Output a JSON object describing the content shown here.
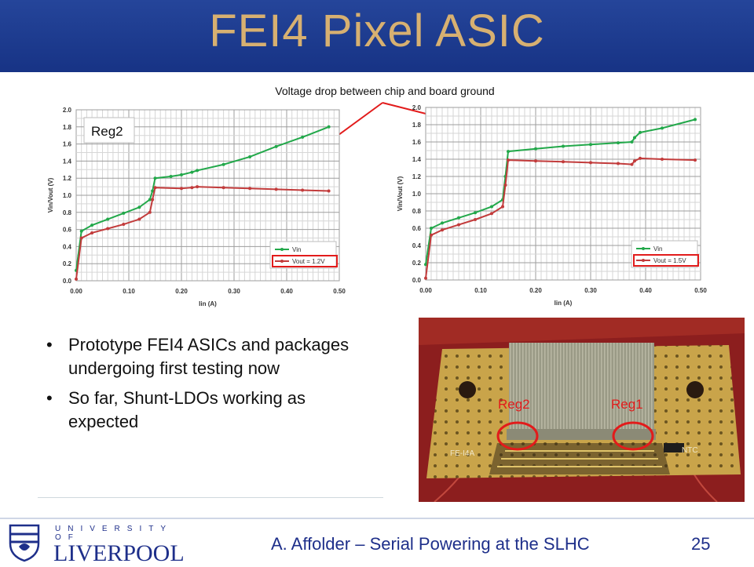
{
  "slide": {
    "title": "FEI4 Pixel ASIC",
    "annotation": "Voltage drop between chip and board ground",
    "bullets": [
      "Prototype FEI4 ASICs and packages undergoing first testing now",
      "So far, Shunt-LDOs working as expected"
    ],
    "footer": "A. Affolder – Serial Powering at the SLHC",
    "page_number": "25",
    "logo": {
      "line1": "UNIVERSITY OF",
      "line2": "LIVERPOOL"
    },
    "photo_labels": {
      "left": "Reg2",
      "right": "Reg1"
    },
    "photo_chip_label": "FE-I4A",
    "photo_ntc_label": "NTC"
  },
  "colors": {
    "title": "#d7b071",
    "titlebar": "#1f3c8f",
    "vin": "#22a84a",
    "vout": "#c23b3b",
    "highlight": "#e21b1b"
  },
  "chart_data": [
    {
      "type": "line",
      "label_box": "Reg2",
      "xlabel": "Iin (A)",
      "ylabel": "Vin/Vout (V)",
      "xlim": [
        0,
        0.5
      ],
      "ylim": [
        0,
        2.0
      ],
      "xticks": [
        "0.00",
        "0.10",
        "0.20",
        "0.30",
        "0.40",
        "0.50"
      ],
      "yticks": [
        "0.0",
        "0.2",
        "0.4",
        "0.6",
        "0.8",
        "1.0",
        "1.2",
        "1.4",
        "1.6",
        "1.8",
        "2.0"
      ],
      "grid": true,
      "legend_position": "bottom-right",
      "series": [
        {
          "name": "Vin",
          "x": [
            0.0,
            0.01,
            0.03,
            0.06,
            0.09,
            0.12,
            0.14,
            0.145,
            0.15,
            0.18,
            0.2,
            0.22,
            0.23,
            0.28,
            0.33,
            0.38,
            0.43,
            0.48
          ],
          "y": [
            0.12,
            0.58,
            0.65,
            0.72,
            0.79,
            0.86,
            0.95,
            1.05,
            1.2,
            1.22,
            1.24,
            1.27,
            1.29,
            1.36,
            1.45,
            1.57,
            1.68,
            1.8
          ]
        },
        {
          "name": "Vout = 1.2V",
          "x": [
            0.0,
            0.01,
            0.03,
            0.06,
            0.09,
            0.12,
            0.14,
            0.145,
            0.15,
            0.2,
            0.22,
            0.23,
            0.28,
            0.33,
            0.38,
            0.43,
            0.48
          ],
          "y": [
            0.02,
            0.5,
            0.56,
            0.61,
            0.66,
            0.72,
            0.8,
            0.95,
            1.09,
            1.08,
            1.09,
            1.1,
            1.09,
            1.08,
            1.07,
            1.06,
            1.05
          ]
        }
      ]
    },
    {
      "type": "line",
      "xlabel": "Iin (A)",
      "ylabel": "Vin/Vout (V)",
      "xlim": [
        0,
        0.5
      ],
      "ylim": [
        0,
        2.0
      ],
      "xticks": [
        "0.00",
        "0.10",
        "0.20",
        "0.30",
        "0.40",
        "0.50"
      ],
      "yticks": [
        "0.0",
        "0.2",
        "0.4",
        "0.6",
        "0.8",
        "1.0",
        "1.2",
        "1.4",
        "1.6",
        "1.8",
        "2.0"
      ],
      "grid": true,
      "legend_position": "bottom-right",
      "series": [
        {
          "name": "Vin",
          "x": [
            0.0,
            0.01,
            0.03,
            0.06,
            0.09,
            0.12,
            0.14,
            0.145,
            0.15,
            0.2,
            0.25,
            0.3,
            0.35,
            0.375,
            0.38,
            0.39,
            0.43,
            0.49
          ],
          "y": [
            0.18,
            0.6,
            0.66,
            0.72,
            0.78,
            0.85,
            0.93,
            1.2,
            1.49,
            1.52,
            1.55,
            1.57,
            1.59,
            1.6,
            1.65,
            1.71,
            1.76,
            1.86
          ]
        },
        {
          "name": "Vout = 1.5V",
          "x": [
            0.0,
            0.01,
            0.03,
            0.06,
            0.09,
            0.12,
            0.14,
            0.145,
            0.15,
            0.2,
            0.25,
            0.3,
            0.35,
            0.375,
            0.38,
            0.39,
            0.43,
            0.49
          ],
          "y": [
            0.02,
            0.52,
            0.58,
            0.64,
            0.7,
            0.77,
            0.85,
            1.1,
            1.39,
            1.38,
            1.37,
            1.36,
            1.35,
            1.34,
            1.38,
            1.41,
            1.4,
            1.39
          ]
        }
      ]
    }
  ]
}
